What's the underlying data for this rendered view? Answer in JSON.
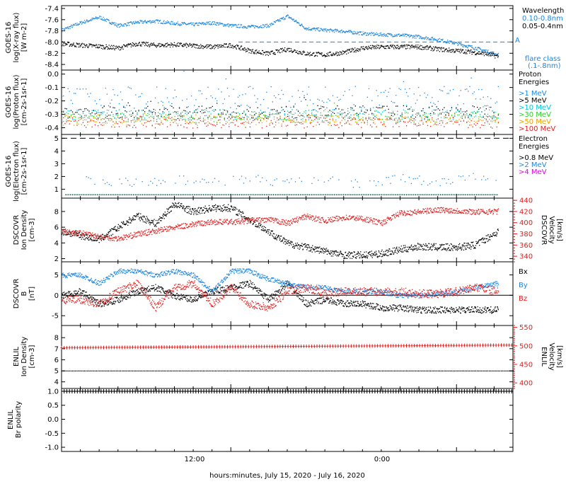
{
  "colors": {
    "black": "#000000",
    "blue": "#1c86e0",
    "cyan": "#00c8d2",
    "green": "#2ecc2e",
    "orange": "#e8a000",
    "red": "#e02020",
    "magenta": "#e000e0"
  },
  "footer": {
    "xlabel": "hours:minutes, July 15, 2020 - July 16, 2020",
    "xticks": [
      "12:00",
      "0:00"
    ]
  },
  "panels": {
    "xray": {
      "ylabel_1": "GOES-16",
      "ylabel_2": "log(X-ray flux)",
      "ylabel_3": "[W m-2]",
      "legend_title": "Wavelength",
      "legend_1": "0.10-0.8nm",
      "legend_2": "0.05-0.4nm",
      "class_letter": "A",
      "class_note_1": "flare class",
      "class_note_2": "(.1-.8nm)"
    },
    "proton": {
      "ylabel_1": "GOES-16",
      "ylabel_2": "log(Proton flux)",
      "ylabel_3": "[cm-2s-1sr-1]",
      "legend_title_1": "Proton",
      "legend_title_2": "Energies",
      "legend": [
        ">1 MeV",
        ">5 MeV",
        ">10 MeV",
        ">30 MeV",
        ">50 MeV",
        ">100 MeV"
      ]
    },
    "electron": {
      "ylabel_1": "GOES-16",
      "ylabel_2": "log(Electron flux)",
      "ylabel_3": "[cm-2s-1sr-1]",
      "legend_title_1": "Electron",
      "legend_title_2": "Energies",
      "legend": [
        ">0.8 MeV",
        ">2 MeV",
        ">4 MeV"
      ]
    },
    "dscovr_density": {
      "ylabel_1": "DSCOVR",
      "ylabel_2": "Ion Density",
      "ylabel_3": "[cm-3]",
      "rlabel_1": "DSCOVR",
      "rlabel_2": "Velocity",
      "rlabel_3": "[km/s]"
    },
    "dscovr_b": {
      "ylabel_1": "DSCOVR",
      "ylabel_2": "B",
      "ylabel_3": "[nT]",
      "legend": [
        "Bx",
        "By",
        "Bz"
      ]
    },
    "enlil_density": {
      "ylabel_1": "ENLIL",
      "ylabel_2": "Ion Density",
      "ylabel_3": "[cm-3]",
      "rlabel_1": "ENLIL",
      "rlabel_2": "Velocity",
      "rlabel_3": "[km/s]"
    },
    "enlil_polarity": {
      "ylabel_1": "ENLIL",
      "ylabel_2": "Br polarity"
    }
  },
  "chart_data": [
    {
      "type": "scatter",
      "title": "",
      "ylabel": "GOES-16 log(X-ray flux) [W m-2]",
      "ylim": [
        -8.5,
        -7.35
      ],
      "yticks": [
        -7.4,
        -7.6,
        -7.8,
        -8.0,
        -8.2,
        -8.4
      ],
      "x_unit": "hours from 00:00 July 15, 2020",
      "xlim": [
        3,
        27
      ],
      "series": [
        {
          "name": "0.10-0.8nm",
          "color": "blue",
          "x": [
            3,
            4,
            5,
            6,
            7,
            8,
            9,
            10,
            11,
            12,
            13,
            14,
            15,
            16,
            17,
            18,
            19,
            20,
            21,
            22,
            23,
            24,
            24.5,
            25,
            25.5,
            26.2
          ],
          "y": [
            -7.78,
            -7.65,
            -7.55,
            -7.7,
            -7.64,
            -7.62,
            -7.66,
            -7.68,
            -7.65,
            -7.7,
            -7.72,
            -7.7,
            -7.53,
            -7.75,
            -7.78,
            -7.8,
            -7.84,
            -7.86,
            -7.87,
            -7.9,
            -7.95,
            -8.02,
            -8.06,
            -8.1,
            -8.15,
            -8.22
          ]
        },
        {
          "name": "0.05-0.4nm",
          "color": "black",
          "x": [
            3,
            4,
            5,
            6,
            7,
            8,
            9,
            10,
            11,
            12,
            13,
            14,
            15,
            16,
            17,
            18,
            19,
            20,
            21,
            22,
            23,
            24,
            24.5,
            25,
            25.5,
            26.2
          ],
          "y": [
            -8.02,
            -8.05,
            -8.07,
            -8.1,
            -8.02,
            -8.05,
            -8.04,
            -8.06,
            -8.08,
            -8.05,
            -8.15,
            -8.2,
            -8.12,
            -8.2,
            -8.22,
            -8.18,
            -8.1,
            -8.08,
            -8.08,
            -8.08,
            -8.12,
            -8.15,
            -8.16,
            -8.18,
            -8.2,
            -8.25
          ]
        }
      ],
      "annotations": [
        {
          "label": "A",
          "y": -8.0
        }
      ]
    },
    {
      "type": "scatter",
      "ylabel": "GOES-16 log(Proton flux) [cm-2s-1sr-1]",
      "ylim": [
        -0.45,
        0.03
      ],
      "yticks": [
        0.0,
        -0.1,
        -0.2,
        -0.3,
        -0.4
      ],
      "series": [
        {
          "name": ">1 MeV",
          "color": "blue",
          "level": -0.2,
          "spread": 0.14
        },
        {
          "name": ">5 MeV",
          "color": "black",
          "level": -0.28,
          "spread": 0.06
        },
        {
          "name": ">10 MeV",
          "color": "cyan",
          "level": -0.3,
          "spread": 0.05
        },
        {
          "name": ">30 MeV",
          "color": "green",
          "level": -0.32,
          "spread": 0.05
        },
        {
          "name": ">50 MeV",
          "color": "orange",
          "level": -0.34,
          "spread": 0.05
        },
        {
          "name": ">100 MeV",
          "color": "red",
          "level": -0.36,
          "spread": 0.05
        }
      ]
    },
    {
      "type": "scatter",
      "ylabel": "GOES-16 log(Electron flux) [cm-2s-1sr-1]",
      "ylim": [
        0.3,
        5.3
      ],
      "yticks": [
        1,
        2,
        3,
        4,
        5
      ],
      "reference_line": 5,
      "series": [
        {
          "name": ">0.8 MeV",
          "color": "black",
          "level": 0.6
        },
        {
          "name": ">2 MeV",
          "color": "blue",
          "x": [
            5,
            7,
            9,
            11,
            13,
            15,
            17,
            19,
            21,
            23,
            25,
            26.2
          ],
          "y": [
            1.7,
            1.5,
            1.8,
            1.6,
            1.9,
            1.5,
            1.9,
            1.4,
            1.9,
            1.6,
            2.0,
            1.6
          ]
        },
        {
          "name": ">4 MeV",
          "color": "magenta",
          "level": 0.6
        }
      ]
    },
    {
      "type": "scatter",
      "ylabel": "DSCOVR Ion Density [cm-3]",
      "ylim": [
        1.6,
        9.7
      ],
      "yticks": [
        2,
        4,
        6,
        8
      ],
      "y2label": "DSCOVR Velocity [km/s]",
      "y2lim": [
        330,
        444
      ],
      "y2ticks": [
        340,
        360,
        380,
        400,
        420,
        440
      ],
      "series": [
        {
          "name": "Ion Density",
          "color": "black",
          "x": [
            3,
            4,
            5,
            6,
            7,
            8,
            9,
            10,
            11,
            12,
            13,
            14,
            15,
            16,
            17,
            18,
            19,
            20,
            21,
            22,
            23,
            24,
            25,
            26.2
          ],
          "y": [
            5.5,
            5.0,
            4.5,
            6.0,
            7.5,
            6.5,
            9.0,
            8.0,
            8.5,
            8.5,
            7.0,
            5.5,
            4.0,
            3.5,
            3.0,
            2.5,
            2.5,
            2.7,
            3.2,
            3.6,
            3.5,
            3.5,
            3.8,
            5.5
          ]
        },
        {
          "name": "Velocity",
          "color": "red",
          "axis": "right",
          "x": [
            3,
            4,
            5,
            6,
            7,
            8,
            9,
            10,
            11,
            12,
            13,
            14,
            15,
            16,
            17,
            18,
            19,
            20,
            21,
            22,
            23,
            24,
            25,
            26.2
          ],
          "y": [
            385,
            382,
            376,
            372,
            380,
            386,
            392,
            398,
            402,
            402,
            404,
            406,
            400,
            412,
            404,
            410,
            408,
            400,
            418,
            420,
            424,
            422,
            420,
            421
          ]
        }
      ]
    },
    {
      "type": "scatter",
      "ylabel": "DSCOVR B [nT]",
      "ylim": [
        -7.4,
        8.2
      ],
      "yticks": [
        5,
        0,
        -5
      ],
      "series": [
        {
          "name": "Bx",
          "color": "black",
          "x": [
            3,
            4,
            5,
            6,
            7,
            8,
            9,
            10,
            11,
            12,
            13,
            14,
            15,
            16,
            17,
            18,
            19,
            20,
            21,
            22,
            23,
            24,
            25,
            26.2
          ],
          "y": [
            0,
            1,
            -2,
            -1,
            1,
            2,
            0,
            -1,
            1,
            2,
            3,
            -1,
            3,
            -2,
            -1,
            -2,
            -2,
            -3,
            -3,
            -3.5,
            -3.5,
            -3.5,
            -3.5,
            -3.5
          ]
        },
        {
          "name": "By",
          "color": "blue",
          "x": [
            3,
            4,
            5,
            6,
            7,
            8,
            9,
            10,
            11,
            12,
            13,
            14,
            15,
            16,
            17,
            18,
            19,
            20,
            21,
            22,
            23,
            24,
            25,
            26.2
          ],
          "y": [
            5,
            5,
            3,
            6,
            6,
            5,
            6,
            5,
            1,
            6,
            6,
            4,
            3,
            2,
            2,
            1,
            1,
            1,
            0,
            0,
            0.5,
            1,
            2,
            3
          ]
        },
        {
          "name": "Bz",
          "color": "red",
          "x": [
            3,
            4,
            5,
            6,
            7,
            8,
            9,
            10,
            11,
            12,
            13,
            14,
            15,
            16,
            17,
            18,
            19,
            20,
            21,
            22,
            23,
            24,
            25,
            26.2
          ],
          "y": [
            -1,
            -1,
            -2,
            1,
            3,
            -3,
            2,
            3,
            -2,
            2,
            -2,
            -3,
            1,
            2,
            0.5,
            1,
            1,
            1,
            1,
            0.5,
            0.5,
            1,
            2,
            1
          ]
        }
      ]
    },
    {
      "type": "scatter",
      "ylabel": "ENLIL Ion Density [cm-3]",
      "ylim": [
        3.4,
        9.1
      ],
      "yticks": [
        4,
        5,
        6,
        7,
        8
      ],
      "y2label": "ENLIL Velocity [km/s]",
      "y2lim": [
        385,
        555
      ],
      "y2ticks": [
        400,
        450,
        500,
        550
      ],
      "series": [
        {
          "name": "Ion Density",
          "color": "black",
          "x": [
            3,
            27
          ],
          "y": [
            5.0,
            5.0
          ]
        },
        {
          "name": "Velocity",
          "color": "red",
          "axis": "right",
          "x": [
            3,
            27
          ],
          "y": [
            495,
            502
          ]
        }
      ]
    },
    {
      "type": "line",
      "ylabel": "ENLIL Br polarity",
      "ylim": [
        -1.15,
        1.1
      ],
      "yticks": [
        1.0,
        0.5,
        0.0,
        -0.5,
        -1.0
      ],
      "series": [
        {
          "name": "Br polarity",
          "color": "black",
          "x": [
            3,
            27
          ],
          "y": [
            1.0,
            1.0
          ]
        }
      ]
    }
  ]
}
